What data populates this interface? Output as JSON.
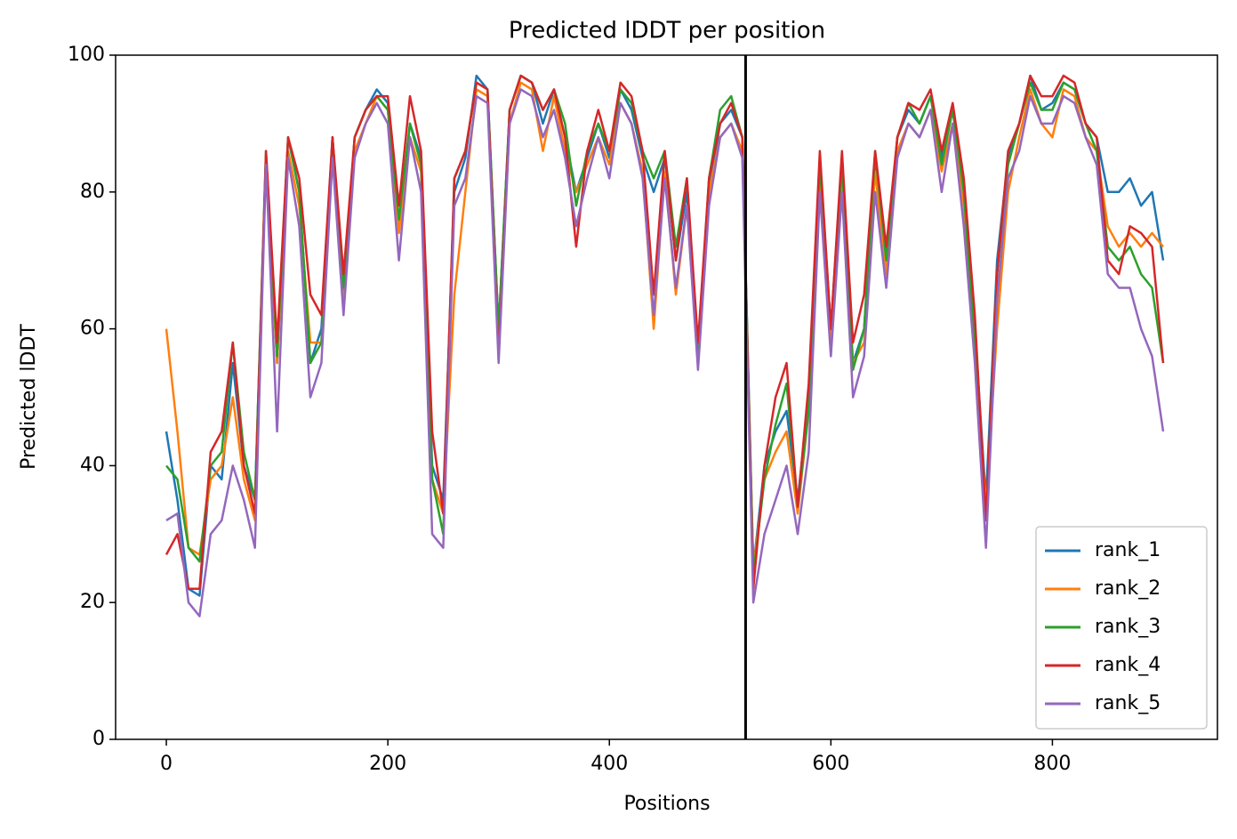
{
  "chart_data": {
    "type": "line",
    "title": "Predicted lDDT per position",
    "xlabel": "Positions",
    "ylabel": "Predicted lDDT",
    "xlim": [
      -45.8,
      949
    ],
    "ylim": [
      0,
      100
    ],
    "xticks": [
      0,
      200,
      400,
      600,
      800
    ],
    "yticks": [
      0,
      20,
      40,
      60,
      80,
      100
    ],
    "vlines": [
      523
    ],
    "vline_color": "#000000",
    "legend": "lower right",
    "grid": false,
    "x": [
      0,
      10,
      20,
      30,
      40,
      50,
      60,
      70,
      80,
      90,
      100,
      110,
      120,
      130,
      140,
      150,
      160,
      170,
      180,
      190,
      200,
      210,
      220,
      230,
      240,
      250,
      260,
      270,
      280,
      290,
      300,
      310,
      320,
      330,
      340,
      350,
      360,
      370,
      380,
      390,
      400,
      410,
      420,
      430,
      440,
      450,
      460,
      470,
      480,
      490,
      500,
      510,
      520,
      530,
      540,
      550,
      560,
      570,
      580,
      590,
      600,
      610,
      620,
      630,
      640,
      650,
      660,
      670,
      680,
      690,
      700,
      710,
      720,
      730,
      740,
      750,
      760,
      770,
      780,
      790,
      800,
      810,
      820,
      830,
      840,
      850,
      860,
      870,
      880,
      890,
      900
    ],
    "series": [
      {
        "name": "rank_1",
        "color": "#1f77b4",
        "values": [
          45,
          35,
          22,
          21,
          40,
          38,
          55,
          40,
          35,
          85,
          55,
          88,
          80,
          55,
          60,
          88,
          65,
          88,
          92,
          95,
          93,
          75,
          90,
          85,
          40,
          35,
          80,
          85,
          97,
          95,
          60,
          92,
          97,
          96,
          90,
          95,
          88,
          80,
          85,
          90,
          85,
          95,
          92,
          85,
          80,
          85,
          70,
          80,
          55,
          80,
          90,
          92,
          88,
          25,
          40,
          45,
          48,
          35,
          50,
          85,
          60,
          85,
          55,
          60,
          85,
          70,
          88,
          92,
          90,
          94,
          85,
          92,
          80,
          60,
          35,
          70,
          85,
          90,
          97,
          92,
          93,
          96,
          95,
          90,
          88,
          80,
          80,
          82,
          78,
          80,
          70
        ]
      },
      {
        "name": "rank_2",
        "color": "#ff7f0e",
        "values": [
          60,
          45,
          28,
          27,
          38,
          40,
          50,
          38,
          32,
          85,
          55,
          86,
          78,
          58,
          58,
          86,
          63,
          86,
          90,
          94,
          92,
          74,
          88,
          83,
          38,
          33,
          65,
          80,
          95,
          94,
          58,
          90,
          96,
          95,
          86,
          94,
          86,
          80,
          84,
          88,
          84,
          93,
          90,
          83,
          60,
          83,
          65,
          78,
          55,
          80,
          88,
          90,
          86,
          25,
          38,
          42,
          45,
          33,
          48,
          82,
          58,
          82,
          55,
          58,
          83,
          68,
          86,
          90,
          88,
          92,
          83,
          90,
          78,
          58,
          34,
          60,
          80,
          88,
          95,
          90,
          88,
          95,
          94,
          88,
          86,
          75,
          72,
          74,
          72,
          74,
          72
        ]
      },
      {
        "name": "rank_3",
        "color": "#2ca02c",
        "values": [
          40,
          38,
          28,
          26,
          40,
          42,
          58,
          42,
          35,
          86,
          56,
          88,
          80,
          55,
          58,
          88,
          66,
          88,
          92,
          94,
          92,
          76,
          90,
          84,
          38,
          30,
          82,
          86,
          96,
          95,
          60,
          92,
          97,
          96,
          92,
          95,
          90,
          78,
          86,
          90,
          86,
          95,
          93,
          86,
          82,
          86,
          72,
          82,
          56,
          82,
          92,
          94,
          88,
          24,
          38,
          46,
          52,
          34,
          48,
          84,
          60,
          84,
          54,
          60,
          86,
          70,
          88,
          93,
          90,
          94,
          84,
          92,
          80,
          58,
          32,
          68,
          84,
          90,
          96,
          92,
          92,
          96,
          95,
          90,
          86,
          72,
          70,
          72,
          68,
          66,
          55
        ]
      },
      {
        "name": "rank_4",
        "color": "#d62728",
        "values": [
          27,
          30,
          22,
          22,
          42,
          45,
          58,
          40,
          33,
          86,
          58,
          88,
          82,
          65,
          62,
          88,
          68,
          88,
          92,
          94,
          94,
          78,
          94,
          86,
          45,
          33,
          82,
          86,
          96,
          95,
          56,
          92,
          97,
          96,
          92,
          95,
          88,
          72,
          86,
          92,
          86,
          96,
          94,
          86,
          65,
          86,
          70,
          82,
          58,
          82,
          90,
          93,
          88,
          22,
          40,
          50,
          55,
          34,
          52,
          86,
          60,
          86,
          58,
          65,
          86,
          72,
          88,
          93,
          92,
          95,
          86,
          93,
          82,
          62,
          32,
          68,
          86,
          90,
          97,
          94,
          94,
          97,
          96,
          90,
          88,
          70,
          68,
          75,
          74,
          72,
          55
        ]
      },
      {
        "name": "rank_5",
        "color": "#9467bd",
        "values": [
          32,
          33,
          20,
          18,
          30,
          32,
          40,
          35,
          28,
          84,
          45,
          85,
          75,
          50,
          55,
          85,
          62,
          85,
          90,
          93,
          90,
          70,
          88,
          80,
          30,
          28,
          78,
          82,
          94,
          93,
          55,
          90,
          95,
          94,
          88,
          92,
          85,
          75,
          82,
          88,
          82,
          93,
          90,
          82,
          62,
          82,
          66,
          78,
          54,
          78,
          88,
          90,
          85,
          20,
          30,
          35,
          40,
          30,
          42,
          80,
          56,
          80,
          50,
          56,
          80,
          66,
          85,
          90,
          88,
          92,
          80,
          90,
          75,
          55,
          28,
          64,
          82,
          86,
          94,
          90,
          90,
          94,
          93,
          88,
          84,
          68,
          66,
          66,
          60,
          56,
          45
        ]
      }
    ]
  }
}
